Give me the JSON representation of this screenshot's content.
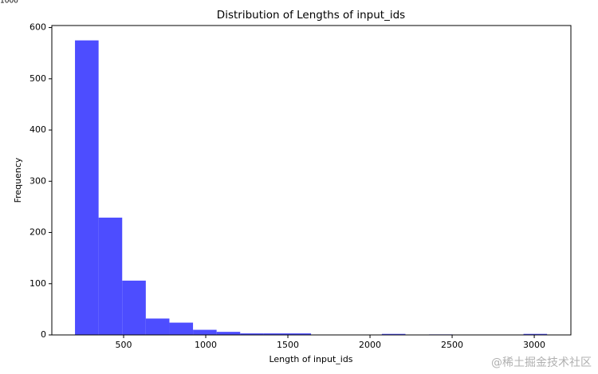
{
  "chart_data": {
    "type": "histogram",
    "title": "Distribution of Lengths of input_ids",
    "xlabel": "Length of input_ids",
    "ylabel": "Frequency",
    "bins": [
      204,
      347.7,
      491.4,
      635.1,
      778.8,
      922.5,
      1066.2,
      1209.9,
      1353.6,
      1497.3,
      1641,
      1784.7,
      1928.4,
      2072.1,
      2215.8,
      2359.5,
      2503.2,
      2646.9,
      2790.6,
      2934.3,
      3078
    ],
    "values": [
      575,
      229,
      106,
      32,
      24,
      10,
      6,
      3,
      3,
      3,
      0,
      0,
      0,
      2,
      0,
      1,
      0,
      0,
      0,
      2
    ],
    "color": "#4d4dff",
    "xlim": [
      63,
      3223
    ],
    "xticks": [
      500,
      1000,
      1500,
      2000,
      2500,
      3000
    ],
    "ylim": [
      0,
      604
    ],
    "yticks": [
      0,
      100,
      200,
      300,
      400,
      500,
      600
    ],
    "grid": false,
    "annotations": [
      "1000",
      "@稀土掘金技术社区"
    ]
  }
}
